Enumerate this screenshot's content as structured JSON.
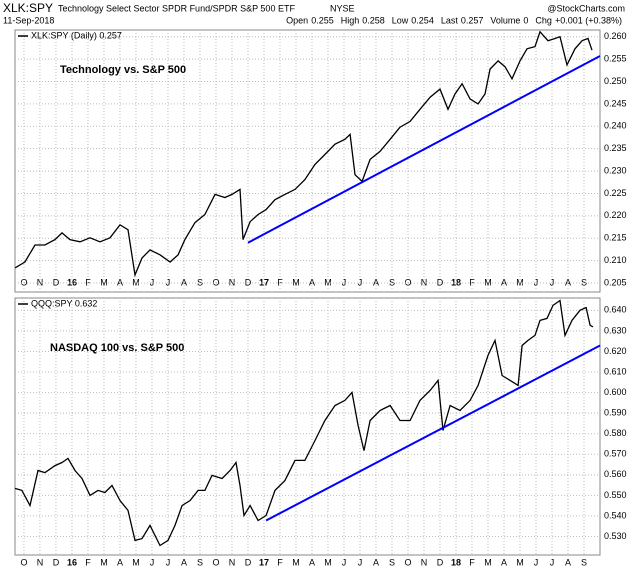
{
  "header": {
    "symbol": "XLK:SPY",
    "description": "Technology Select Sector SPDR Fund/SPDR S&P 500 ETF",
    "exchange": "NYSE",
    "date": "11-Sep-2018",
    "source": "@StockCharts.com",
    "quote": [
      {
        "label": "Open",
        "value": "0.255"
      },
      {
        "label": "High",
        "value": "0.258"
      },
      {
        "label": "Low",
        "value": "0.254"
      },
      {
        "label": "Last",
        "value": "0.257"
      },
      {
        "label": "Volume",
        "value": "0"
      },
      {
        "label": "Chg",
        "value": "+0.001 (+0.38%)"
      }
    ]
  },
  "chart_data": [
    {
      "type": "line",
      "annotation": "Technology vs. S&P 500",
      "grid": true,
      "x": [
        -0.55,
        0.06,
        0.69,
        1.31,
        1.94,
        2.38,
        2.88,
        3.5,
        4.13,
        4.75,
        5.38,
        6.0,
        6.5,
        6.94,
        7.38,
        7.88,
        8.5,
        9.13,
        9.63,
        10.06,
        10.69,
        11.31,
        11.94,
        12.56,
        13.0,
        13.5,
        13.69,
        14.13,
        14.63,
        15.13,
        15.69,
        16.31,
        16.94,
        17.56,
        18.19,
        18.81,
        19.44,
        20.06,
        20.38,
        20.69,
        21.13,
        21.63,
        22.25,
        22.88,
        23.5,
        24.13,
        24.75,
        25.38,
        26.0,
        26.5,
        26.94,
        27.38,
        27.88,
        28.38,
        28.81,
        29.13,
        29.63,
        30.06,
        30.5,
        31.0,
        31.44,
        31.94,
        32.25,
        32.75,
        33.19,
        33.5,
        33.94,
        34.44,
        34.88,
        35.25,
        35.5
      ],
      "series": [
        {
          "name": "XLK:SPY (Daily) 0.257",
          "color": "#000000",
          "values": [
            0.2084,
            0.2097,
            0.2135,
            0.2135,
            0.2147,
            0.2162,
            0.2147,
            0.2142,
            0.2151,
            0.2142,
            0.2151,
            0.218,
            0.2169,
            0.2068,
            0.2106,
            0.2124,
            0.2113,
            0.2097,
            0.2113,
            0.2147,
            0.2185,
            0.2203,
            0.2248,
            0.2241,
            0.2248,
            0.2259,
            0.2147,
            0.2187,
            0.2203,
            0.2214,
            0.2236,
            0.2248,
            0.2259,
            0.2281,
            0.2315,
            0.2337,
            0.236,
            0.2371,
            0.2382,
            0.2292,
            0.2277,
            0.2326,
            0.2344,
            0.2371,
            0.2398,
            0.2411,
            0.2438,
            0.2465,
            0.2483,
            0.2438,
            0.2472,
            0.2495,
            0.2461,
            0.245,
            0.2472,
            0.2528,
            0.2546,
            0.2533,
            0.2506,
            0.2546,
            0.2573,
            0.2578,
            0.2611,
            0.2591,
            0.2596,
            0.26,
            0.2537,
            0.2573,
            0.2591,
            0.2596,
            0.257
          ]
        }
      ],
      "trendline": {
        "color": "#0000ff",
        "x": [
          14.0,
          36.0
        ],
        "values": [
          0.214,
          0.2557
        ]
      },
      "xlim": [
        -0.56,
        36
      ],
      "ylim": [
        0.203,
        0.2615
      ],
      "xticks": [
        {
          "value": 0,
          "label": "O"
        },
        {
          "value": 1,
          "label": "N"
        },
        {
          "value": 2,
          "label": "D"
        },
        {
          "value": 3,
          "label": "16"
        },
        {
          "value": 4,
          "label": "F"
        },
        {
          "value": 5,
          "label": "M"
        },
        {
          "value": 6,
          "label": "A"
        },
        {
          "value": 7,
          "label": "M"
        },
        {
          "value": 8,
          "label": "J"
        },
        {
          "value": 9,
          "label": "J"
        },
        {
          "value": 10,
          "label": "A"
        },
        {
          "value": 11,
          "label": "S"
        },
        {
          "value": 12,
          "label": "O"
        },
        {
          "value": 13,
          "label": "N"
        },
        {
          "value": 14,
          "label": "D"
        },
        {
          "value": 15,
          "label": "17"
        },
        {
          "value": 16,
          "label": "F"
        },
        {
          "value": 17,
          "label": "M"
        },
        {
          "value": 18,
          "label": "A"
        },
        {
          "value": 19,
          "label": "M"
        },
        {
          "value": 20,
          "label": "J"
        },
        {
          "value": 21,
          "label": "J"
        },
        {
          "value": 22,
          "label": "A"
        },
        {
          "value": 23,
          "label": "S"
        },
        {
          "value": 24,
          "label": "O"
        },
        {
          "value": 25,
          "label": "N"
        },
        {
          "value": 26,
          "label": "D"
        },
        {
          "value": 27,
          "label": "18"
        },
        {
          "value": 28,
          "label": "F"
        },
        {
          "value": 29,
          "label": "M"
        },
        {
          "value": 30,
          "label": "A"
        },
        {
          "value": 31,
          "label": "M"
        },
        {
          "value": 32,
          "label": "J"
        },
        {
          "value": 33,
          "label": "J"
        },
        {
          "value": 34,
          "label": "A"
        },
        {
          "value": 35,
          "label": "S"
        }
      ],
      "yticks": [
        0.205,
        {
          "value": 0.21,
          "label": "0.210"
        },
        0.215,
        {
          "value": 0.22,
          "label": "0.220"
        },
        0.225,
        {
          "value": 0.23,
          "label": "0.230"
        },
        0.235,
        {
          "value": 0.24,
          "label": "0.240"
        },
        0.245,
        {
          "value": 0.25,
          "label": "0.250"
        },
        0.255,
        {
          "value": 0.26,
          "label": "0.260"
        }
      ]
    },
    {
      "type": "line",
      "annotation": "NASDAQ 100 vs. S&P 500",
      "grid": true,
      "x": [
        -0.56,
        -0.13,
        0.38,
        0.88,
        1.31,
        1.94,
        2.38,
        2.75,
        3.19,
        3.63,
        4.13,
        4.63,
        5.06,
        5.5,
        6.0,
        6.5,
        6.94,
        7.38,
        7.88,
        8.5,
        9.0,
        9.44,
        9.88,
        10.38,
        10.88,
        11.31,
        11.75,
        12.38,
        12.88,
        13.25,
        13.5,
        13.75,
        14.13,
        14.63,
        15.13,
        15.69,
        16.31,
        16.94,
        17.56,
        18.19,
        18.81,
        19.44,
        20.06,
        20.5,
        20.88,
        21.25,
        21.63,
        22.25,
        22.88,
        23.5,
        24.13,
        24.75,
        25.38,
        25.88,
        26.19,
        26.63,
        27.25,
        27.88,
        28.38,
        29.0,
        29.44,
        29.88,
        30.38,
        30.88,
        31.13,
        31.5,
        31.94,
        32.25,
        32.69,
        33.06,
        33.5,
        33.81,
        34.25,
        34.75,
        35.13,
        35.38,
        35.56
      ],
      "series": [
        {
          "name": "QQQ:SPY 0.632",
          "color": "#000000",
          "values": [
            0.5534,
            0.5524,
            0.5451,
            0.5621,
            0.5611,
            0.5645,
            0.566,
            0.568,
            0.5621,
            0.5582,
            0.55,
            0.5524,
            0.5514,
            0.5548,
            0.5475,
            0.5427,
            0.5281,
            0.529,
            0.5354,
            0.5256,
            0.5281,
            0.5354,
            0.5451,
            0.5475,
            0.5524,
            0.5524,
            0.5597,
            0.5582,
            0.5621,
            0.566,
            0.5548,
            0.5402,
            0.5451,
            0.5378,
            0.5402,
            0.5524,
            0.5572,
            0.567,
            0.567,
            0.5767,
            0.5864,
            0.5937,
            0.5962,
            0.6001,
            0.584,
            0.5718,
            0.5864,
            0.5913,
            0.5937,
            0.5864,
            0.5864,
            0.5962,
            0.601,
            0.6059,
            0.5816,
            0.5937,
            0.5913,
            0.5962,
            0.6035,
            0.6181,
            0.6254,
            0.6083,
            0.6059,
            0.6035,
            0.6229,
            0.6254,
            0.6278,
            0.6351,
            0.6361,
            0.6424,
            0.6448,
            0.6278,
            0.6351,
            0.64,
            0.6414,
            0.6327,
            0.632
          ]
        }
      ],
      "trendline": {
        "color": "#0000ff",
        "x": [
          15.13,
          36.0
        ],
        "values": [
          0.5378,
          0.6229
        ]
      },
      "xlim": [
        -0.56,
        36
      ],
      "ylim": [
        0.521,
        0.646
      ],
      "xticks": [
        {
          "value": 0,
          "label": "O"
        },
        {
          "value": 1,
          "label": "N"
        },
        {
          "value": 2,
          "label": "D"
        },
        {
          "value": 3,
          "label": "16"
        },
        {
          "value": 4,
          "label": "F"
        },
        {
          "value": 5,
          "label": "M"
        },
        {
          "value": 6,
          "label": "A"
        },
        {
          "value": 7,
          "label": "M"
        },
        {
          "value": 8,
          "label": "J"
        },
        {
          "value": 9,
          "label": "J"
        },
        {
          "value": 10,
          "label": "A"
        },
        {
          "value": 11,
          "label": "S"
        },
        {
          "value": 12,
          "label": "O"
        },
        {
          "value": 13,
          "label": "N"
        },
        {
          "value": 14,
          "label": "D"
        },
        {
          "value": 15,
          "label": "17"
        },
        {
          "value": 16,
          "label": "F"
        },
        {
          "value": 17,
          "label": "M"
        },
        {
          "value": 18,
          "label": "A"
        },
        {
          "value": 19,
          "label": "M"
        },
        {
          "value": 20,
          "label": "J"
        },
        {
          "value": 21,
          "label": "J"
        },
        {
          "value": 22,
          "label": "A"
        },
        {
          "value": 23,
          "label": "S"
        },
        {
          "value": 24,
          "label": "O"
        },
        {
          "value": 25,
          "label": "N"
        },
        {
          "value": 26,
          "label": "D"
        },
        {
          "value": 27,
          "label": "18"
        },
        {
          "value": 28,
          "label": "F"
        },
        {
          "value": 29,
          "label": "M"
        },
        {
          "value": 30,
          "label": "A"
        },
        {
          "value": 31,
          "label": "M"
        },
        {
          "value": 32,
          "label": "J"
        },
        {
          "value": 33,
          "label": "J"
        },
        {
          "value": 34,
          "label": "A"
        },
        {
          "value": 35,
          "label": "S"
        }
      ],
      "yticks": [
        {
          "value": 0.53,
          "label": "0.530"
        },
        {
          "value": 0.54,
          "label": "0.540"
        },
        {
          "value": 0.55,
          "label": "0.550"
        },
        {
          "value": 0.56,
          "label": "0.560"
        },
        {
          "value": 0.57,
          "label": "0.570"
        },
        {
          "value": 0.58,
          "label": "0.580"
        },
        {
          "value": 0.59,
          "label": "0.590"
        },
        {
          "value": 0.6,
          "label": "0.600"
        },
        {
          "value": 0.61,
          "label": "0.610"
        },
        {
          "value": 0.62,
          "label": "0.620"
        },
        {
          "value": 0.63,
          "label": "0.630"
        },
        {
          "value": 0.64,
          "label": "0.640"
        }
      ]
    }
  ]
}
